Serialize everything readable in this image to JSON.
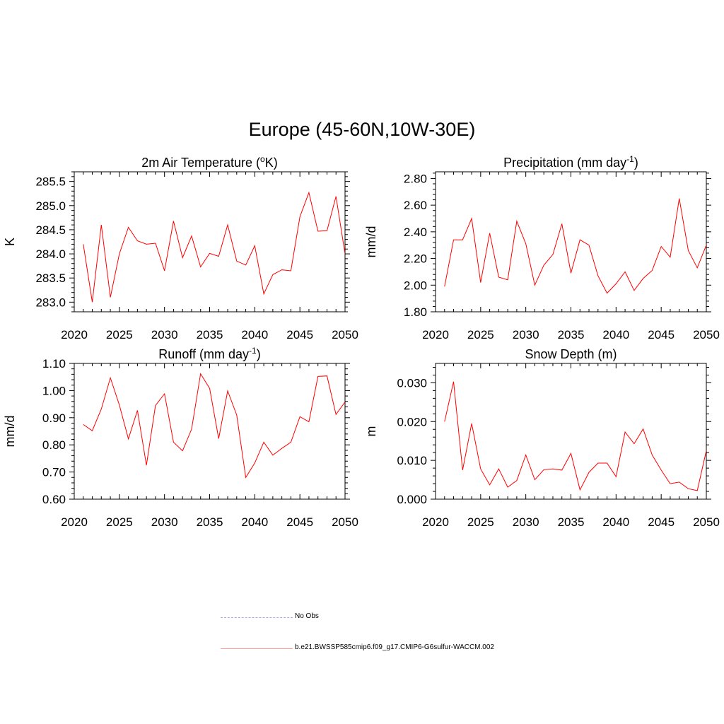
{
  "title": "Europe (45-60N,10W-30E)",
  "colors": {
    "model": "#ff0000",
    "obs": "#aaaaee",
    "axis": "#000000"
  },
  "legend": [
    {
      "label": "No Obs",
      "style": "dashed",
      "color": "#aaaaee"
    },
    {
      "label": "b.e21.BWSSP585cmip6.f09_g17.CMIP6-G6sulfur-WACCM.002",
      "style": "solid",
      "color": "#ff0000"
    }
  ],
  "chart_data": [
    {
      "type": "line",
      "title": "2m Air Temperature (",
      "title_sup": "o",
      "title_end": "K)",
      "ylabel": "K",
      "xlim": [
        2020,
        2050
      ],
      "ylim": [
        282.8,
        285.7
      ],
      "xticks": [
        "2020",
        "2025",
        "2030",
        "2035",
        "2040",
        "2045",
        "2050"
      ],
      "yticks": [
        "283.0",
        "283.5",
        "284.0",
        "284.5",
        "285.0",
        "285.5"
      ],
      "x": [
        2021,
        2022,
        2023,
        2024,
        2025,
        2026,
        2027,
        2028,
        2029,
        2030,
        2031,
        2032,
        2033,
        2034,
        2035,
        2036,
        2037,
        2038,
        2039,
        2040,
        2041,
        2042,
        2043,
        2044,
        2045,
        2046,
        2047,
        2048,
        2049,
        2050
      ],
      "series": [
        {
          "values": [
            284.2,
            283.0,
            284.6,
            283.1,
            284.0,
            284.55,
            284.27,
            284.2,
            284.22,
            283.65,
            284.68,
            283.92,
            284.37,
            283.73,
            284.01,
            283.95,
            284.6,
            283.85,
            283.77,
            284.17,
            283.17,
            283.57,
            283.67,
            283.65,
            284.77,
            285.27,
            284.47,
            284.48,
            285.19,
            284.0
          ]
        }
      ]
    },
    {
      "type": "line",
      "title": "Precipitation (mm day",
      "title_sup": "-1",
      "title_end": ")",
      "ylabel": "mm/d",
      "xlim": [
        2020,
        2050
      ],
      "ylim": [
        1.8,
        2.85
      ],
      "xticks": [
        "2020",
        "2025",
        "2030",
        "2035",
        "2040",
        "2045",
        "2050"
      ],
      "yticks": [
        "1.80",
        "2.00",
        "2.20",
        "2.40",
        "2.60",
        "2.80"
      ],
      "x": [
        2021,
        2022,
        2023,
        2024,
        2025,
        2026,
        2027,
        2028,
        2029,
        2030,
        2031,
        2032,
        2033,
        2034,
        2035,
        2036,
        2037,
        2038,
        2039,
        2040,
        2041,
        2042,
        2043,
        2044,
        2045,
        2046,
        2047,
        2048,
        2049,
        2050
      ],
      "series": [
        {
          "values": [
            1.99,
            2.34,
            2.34,
            2.5,
            2.02,
            2.39,
            2.06,
            2.04,
            2.48,
            2.31,
            2.0,
            2.15,
            2.23,
            2.46,
            2.09,
            2.34,
            2.3,
            2.07,
            1.94,
            2.01,
            2.1,
            1.96,
            2.05,
            2.11,
            2.29,
            2.21,
            2.65,
            2.26,
            2.13,
            2.3
          ]
        }
      ]
    },
    {
      "type": "line",
      "title": "Runoff (mm day",
      "title_sup": "-1",
      "title_end": ")",
      "ylabel": "mm/d",
      "xlim": [
        2020,
        2050
      ],
      "ylim": [
        0.6,
        1.1
      ],
      "xticks": [
        "2020",
        "2025",
        "2030",
        "2035",
        "2040",
        "2045",
        "2050"
      ],
      "yticks": [
        "0.60",
        "0.70",
        "0.80",
        "0.90",
        "1.00",
        "1.10"
      ],
      "x": [
        2021,
        2022,
        2023,
        2024,
        2025,
        2026,
        2027,
        2028,
        2029,
        2030,
        2031,
        2032,
        2033,
        2034,
        2035,
        2036,
        2037,
        2038,
        2039,
        2040,
        2041,
        2042,
        2043,
        2044,
        2045,
        2046,
        2047,
        2048,
        2049,
        2050
      ],
      "series": [
        {
          "values": [
            0.875,
            0.852,
            0.932,
            1.047,
            0.947,
            0.822,
            0.927,
            0.725,
            0.945,
            0.988,
            0.81,
            0.778,
            0.858,
            1.062,
            1.008,
            0.823,
            0.999,
            0.91,
            0.68,
            0.733,
            0.81,
            0.762,
            0.787,
            0.81,
            0.904,
            0.885,
            1.052,
            1.054,
            0.912,
            0.958
          ]
        }
      ]
    },
    {
      "type": "line",
      "title": "Snow Depth (m)",
      "title_sup": "",
      "title_end": "",
      "ylabel": "m",
      "xlim": [
        2020,
        2050
      ],
      "ylim": [
        0.0,
        0.035
      ],
      "xticks": [
        "2020",
        "2025",
        "2030",
        "2035",
        "2040",
        "2045",
        "2050"
      ],
      "yticks": [
        "0.000",
        "0.010",
        "0.020",
        "0.030"
      ],
      "x": [
        2021,
        2022,
        2023,
        2024,
        2025,
        2026,
        2027,
        2028,
        2029,
        2030,
        2031,
        2032,
        2033,
        2034,
        2035,
        2036,
        2037,
        2038,
        2039,
        2040,
        2041,
        2042,
        2043,
        2044,
        2045,
        2046,
        2047,
        2048,
        2049,
        2050
      ],
      "series": [
        {
          "values": [
            0.02,
            0.0303,
            0.0075,
            0.0195,
            0.0078,
            0.0037,
            0.0078,
            0.0031,
            0.0048,
            0.0114,
            0.005,
            0.0076,
            0.0078,
            0.0075,
            0.0118,
            0.0024,
            0.0069,
            0.0093,
            0.0093,
            0.0058,
            0.0173,
            0.0143,
            0.0181,
            0.0114,
            0.0075,
            0.004,
            0.0044,
            0.0027,
            0.0022,
            0.0125
          ]
        }
      ]
    }
  ]
}
